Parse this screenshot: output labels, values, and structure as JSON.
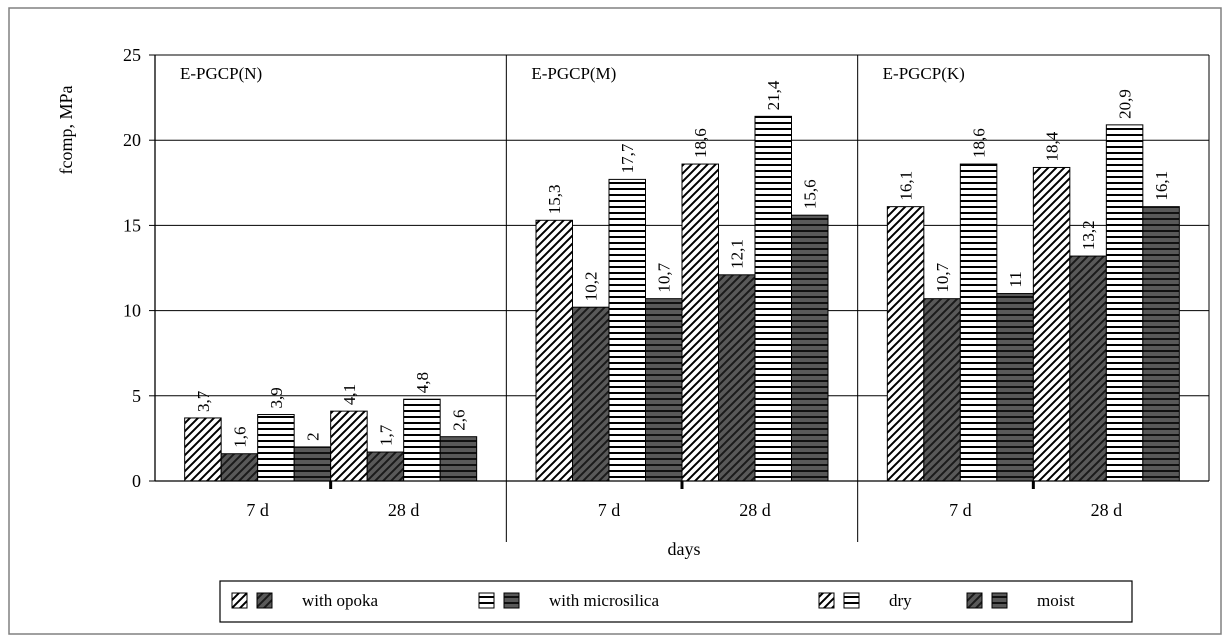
{
  "chart_data": {
    "type": "bar",
    "title": "",
    "xlabel": "days",
    "ylabel": "fcomp, MPa",
    "ylim": [
      0,
      25
    ],
    "yticks": [
      "0",
      "5",
      "10",
      "15",
      "20",
      "25"
    ],
    "grid": true,
    "groups": [
      {
        "name": "E-PGCP(N)",
        "categories": [
          "7 d",
          "28 d"
        ],
        "series": [
          {
            "key": "opoka_dry",
            "values": [
              3.7,
              4.1
            ],
            "labels": [
              "3,7",
              "4,1"
            ]
          },
          {
            "key": "opoka_moist",
            "values": [
              1.6,
              1.7
            ],
            "labels": [
              "1,6",
              "1,7"
            ]
          },
          {
            "key": "micro_dry",
            "values": [
              3.9,
              4.8
            ],
            "labels": [
              "3,9",
              "4,8"
            ]
          },
          {
            "key": "micro_moist",
            "values": [
              2.0,
              2.6
            ],
            "labels": [
              "2",
              "2,6"
            ]
          }
        ]
      },
      {
        "name": "E-PGCP(M)",
        "categories": [
          "7 d",
          "28 d"
        ],
        "series": [
          {
            "key": "opoka_dry",
            "values": [
              15.3,
              18.6
            ],
            "labels": [
              "15,3",
              "18,6"
            ]
          },
          {
            "key": "opoka_moist",
            "values": [
              10.2,
              12.1
            ],
            "labels": [
              "10,2",
              "12,1"
            ]
          },
          {
            "key": "micro_dry",
            "values": [
              17.7,
              21.4
            ],
            "labels": [
              "17,7",
              "21,4"
            ]
          },
          {
            "key": "micro_moist",
            "values": [
              10.7,
              15.6
            ],
            "labels": [
              "10,7",
              "15,6"
            ]
          }
        ]
      },
      {
        "name": "E-PGCP(K)",
        "categories": [
          "7 d",
          "28 d"
        ],
        "series": [
          {
            "key": "opoka_dry",
            "values": [
              16.1,
              18.4
            ],
            "labels": [
              "16,1",
              "18,4"
            ]
          },
          {
            "key": "opoka_moist",
            "values": [
              10.7,
              13.2
            ],
            "labels": [
              "10,7",
              "13,2"
            ]
          },
          {
            "key": "micro_dry",
            "values": [
              18.6,
              20.9
            ],
            "labels": [
              "18,6",
              "20,9"
            ]
          },
          {
            "key": "micro_moist",
            "values": [
              11.0,
              16.1
            ],
            "labels": [
              "11",
              "16,1"
            ]
          }
        ]
      }
    ],
    "legend": {
      "placement": "bottom",
      "items": [
        {
          "label": "with opoka",
          "swatches": [
            "opoka_dry",
            "opoka_moist"
          ]
        },
        {
          "label": "with microsilica",
          "swatches": [
            "micro_dry",
            "micro_moist"
          ]
        },
        {
          "label": "dry",
          "swatches": [
            "opoka_dry",
            "micro_dry"
          ]
        },
        {
          "label": "moist",
          "swatches": [
            "opoka_moist",
            "micro_moist"
          ]
        }
      ]
    },
    "colors": {
      "dry_fill": "#ffffff",
      "moist_fill": "#595959",
      "stroke": "#000000",
      "grid": "#000000"
    }
  }
}
